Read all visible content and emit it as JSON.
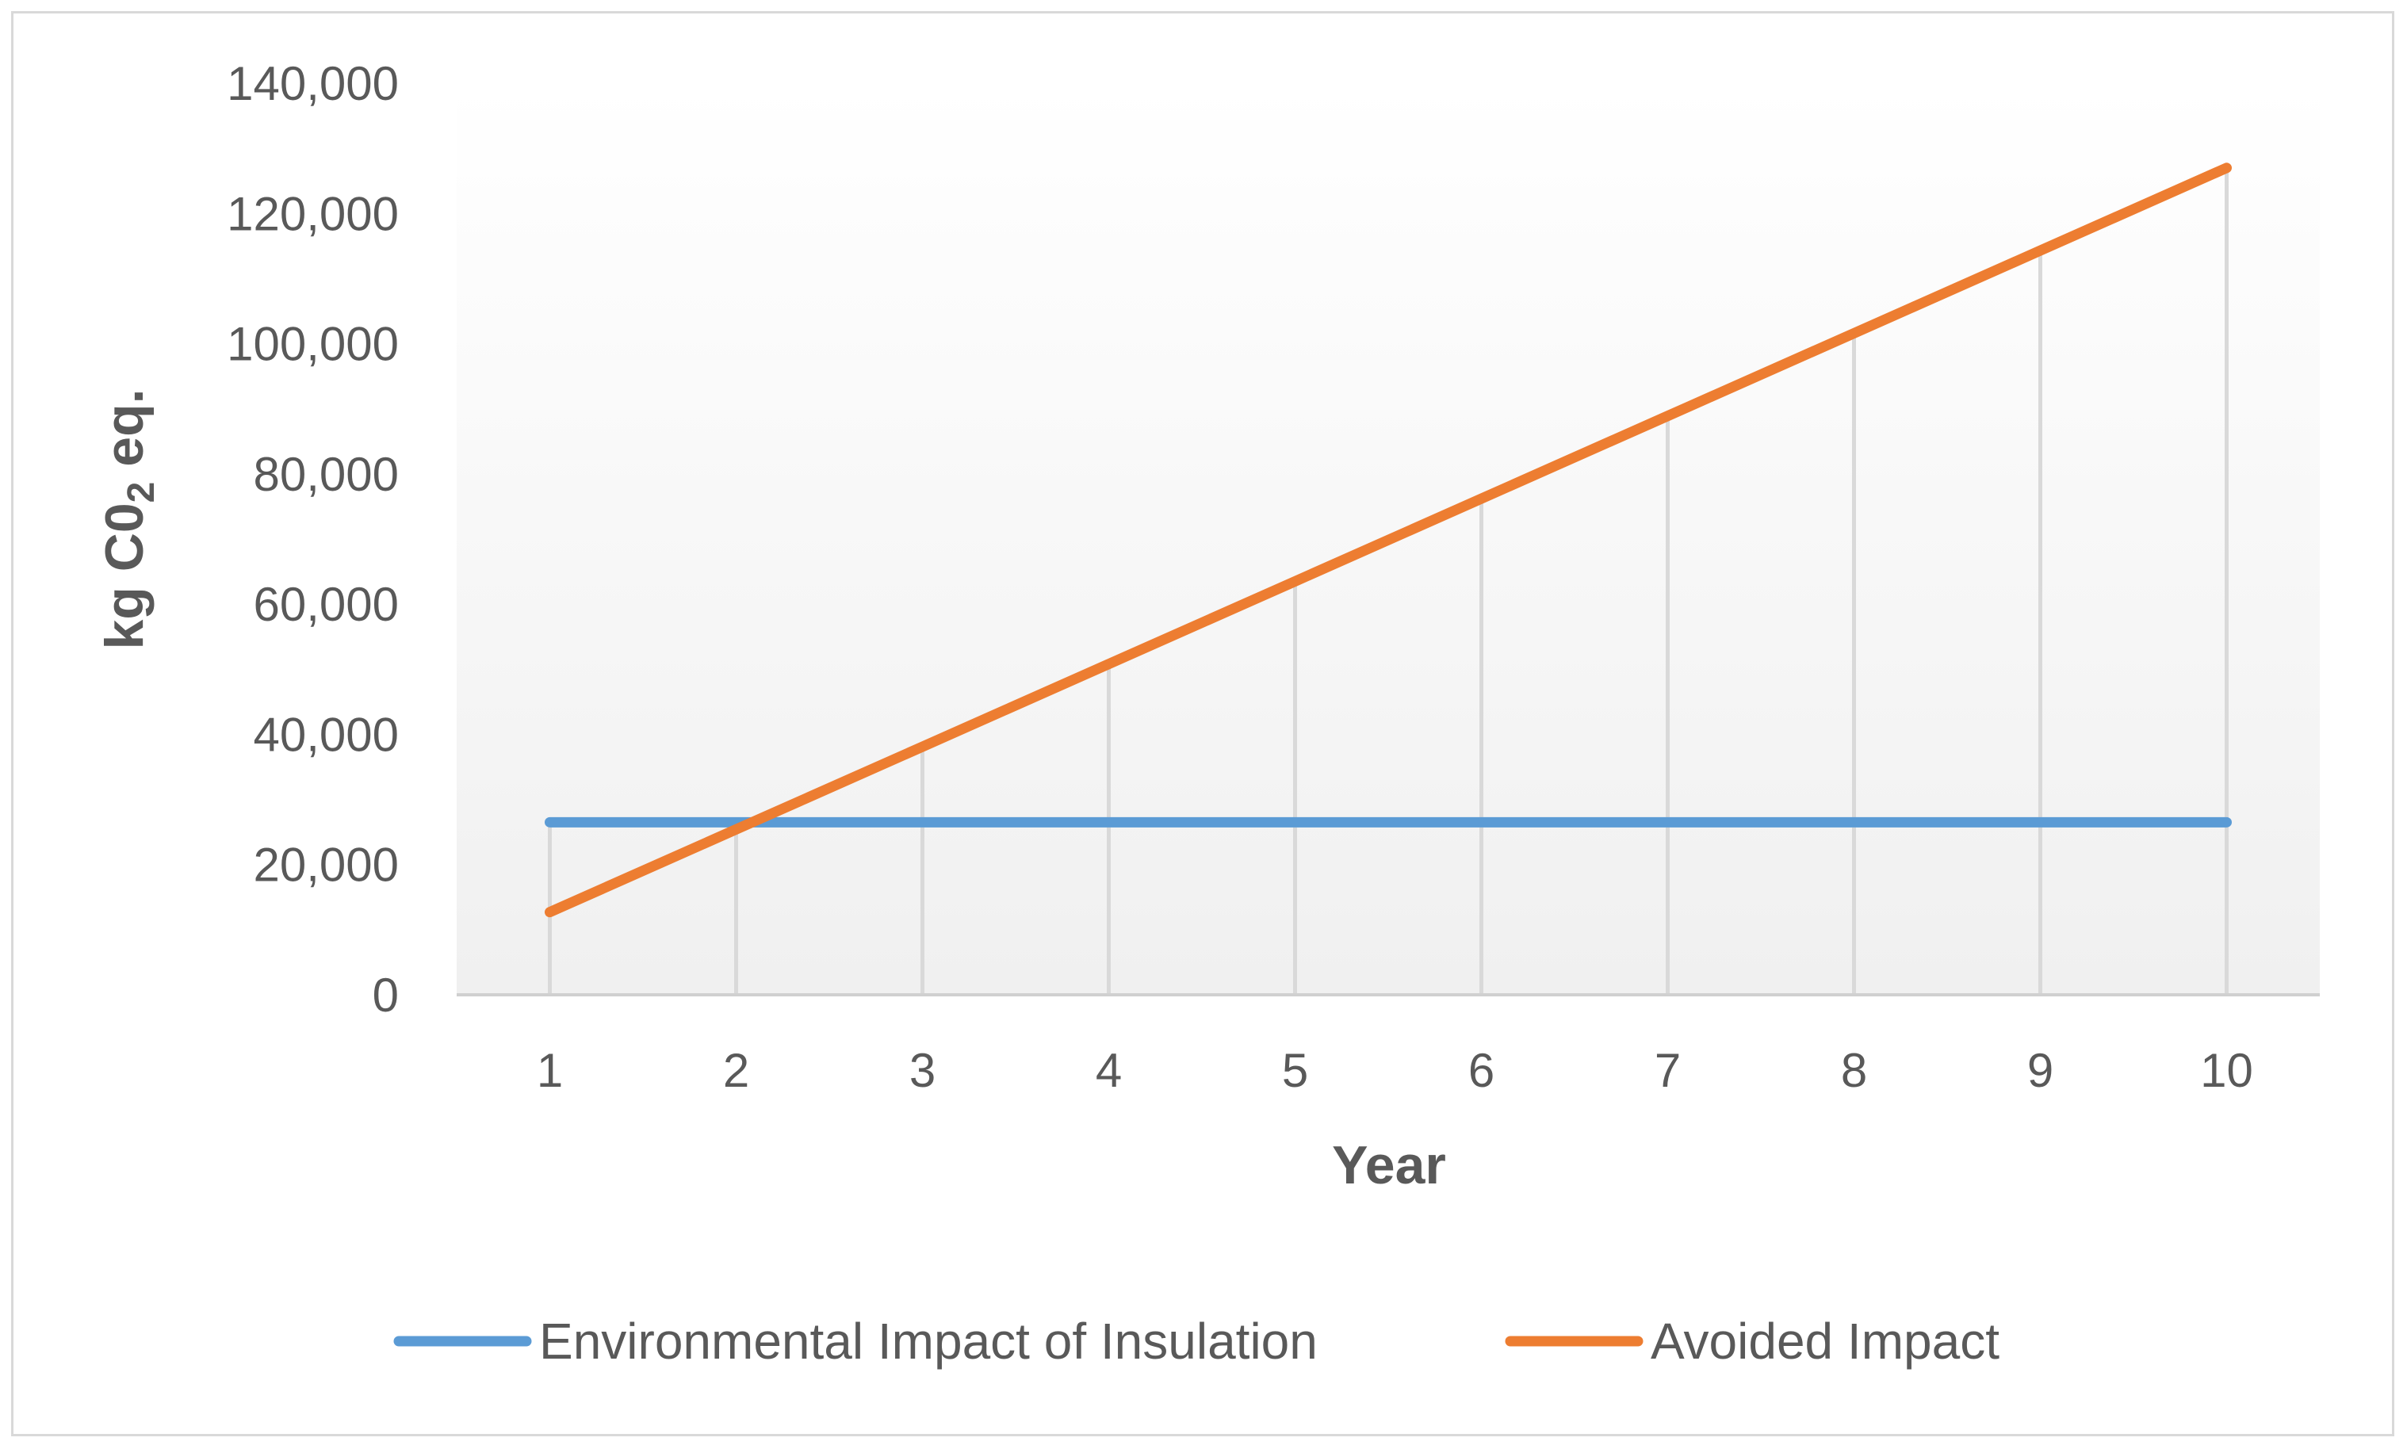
{
  "chart_data": {
    "type": "line",
    "title": "",
    "xlabel": "Year",
    "ylabel": "kg C0",
    "ylabel_subscript": "2",
    "ylabel_suffix": " eq.",
    "x": [
      1,
      2,
      3,
      4,
      5,
      6,
      7,
      8,
      9,
      10
    ],
    "x_tick_labels": [
      "1",
      "2",
      "3",
      "4",
      "5",
      "6",
      "7",
      "8",
      "9",
      "10"
    ],
    "ylim": [
      0,
      140000
    ],
    "y_ticks": [
      0,
      20000,
      40000,
      60000,
      80000,
      100000,
      120000,
      140000
    ],
    "y_tick_labels": [
      "0",
      "20,000",
      "40,000",
      "60,000",
      "80,000",
      "100,000",
      "120,000",
      "140,000"
    ],
    "grid": "vertical drop lines",
    "legend_position": "bottom",
    "series": [
      {
        "name": "Environmental Impact of Insulation",
        "color": "#5b9bd5",
        "values": [
          26500,
          26500,
          26500,
          26500,
          26500,
          26500,
          26500,
          26500,
          26500,
          26500
        ]
      },
      {
        "name": "Avoided Impact",
        "color": "#ed7d31",
        "values": [
          12700,
          25400,
          38100,
          50800,
          63500,
          76200,
          88900,
          101600,
          114300,
          127000
        ]
      }
    ]
  }
}
